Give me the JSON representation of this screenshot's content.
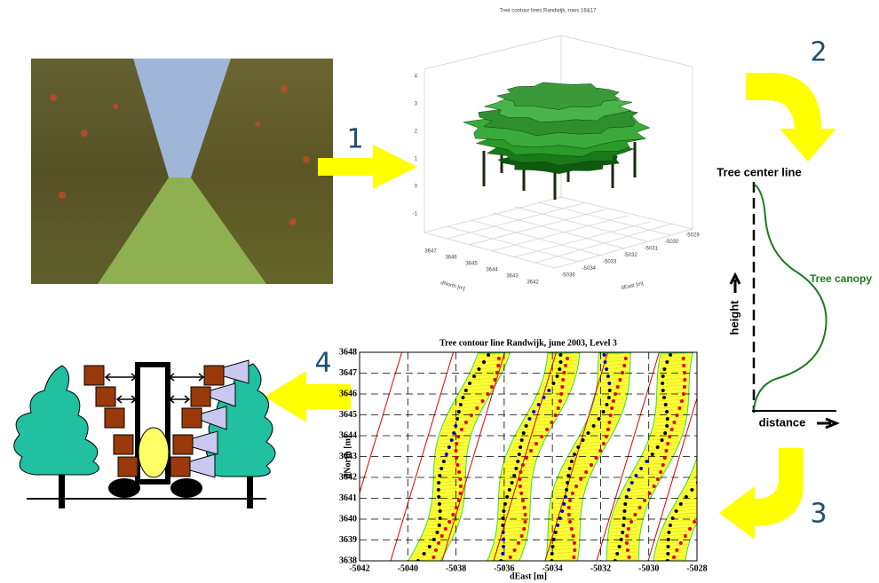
{
  "steps": [
    "1",
    "2",
    "3",
    "4"
  ],
  "plot3d": {
    "title": "Tree contour lines Randwijk, rows 16&17",
    "zticks": [
      -1,
      0,
      1,
      2,
      3,
      4
    ],
    "north_ticks": [
      3647,
      3646,
      3645,
      3644,
      3643,
      3642
    ],
    "east_ticks": [
      -5036,
      -5034,
      -5033,
      -5032,
      -5031,
      -5030,
      -5029
    ],
    "north_label": "dNorth [m]",
    "east_label": "dEast [m]"
  },
  "sketch": {
    "center_line": "Tree center line",
    "canopy": "Tree canopy",
    "height": "height",
    "distance": "distance"
  },
  "plot2d": {
    "title": "Tree contour line Randwijk, june 2003, Level 3",
    "xticks": [
      -5042,
      -5040,
      -5038,
      -5036,
      -5034,
      -5032,
      -5030,
      -5028
    ],
    "yticks": [
      3638,
      3639,
      3640,
      3641,
      3642,
      3643,
      3644,
      3645,
      3646,
      3647,
      3648
    ],
    "xlabel": "dEast [m]",
    "ylabel": "dNorth [m]"
  }
}
